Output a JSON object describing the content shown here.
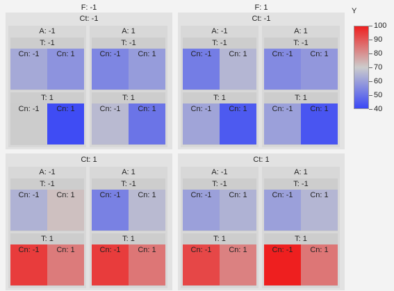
{
  "chart_data": {
    "type": "heatmap",
    "title": "",
    "color_scale": {
      "label": "Y",
      "min": 40,
      "max": 100,
      "ticks": [
        "100",
        "90",
        "80",
        "70",
        "60",
        "50",
        "40"
      ],
      "low_color": "#3a48f5",
      "mid_color": "#cccccc",
      "high_color": "#ee1f1f"
    },
    "facets": {
      "F": [
        "F: -1",
        "F: 1"
      ],
      "Ct": [
        "Ct: -1",
        "Ct: 1"
      ],
      "A": [
        "A: -1",
        "A: 1"
      ],
      "T": [
        "T: -1",
        "T: 1"
      ],
      "Cn": [
        "Cn: -1",
        "Cn: 1"
      ]
    },
    "cells": [
      {
        "F": -1,
        "Ct": -1,
        "A": -1,
        "T": -1,
        "Cn": -1,
        "Y": 62
      },
      {
        "F": -1,
        "Ct": -1,
        "A": -1,
        "T": -1,
        "Cn": 1,
        "Y": 57
      },
      {
        "F": -1,
        "Ct": -1,
        "A": -1,
        "T": 1,
        "Cn": -1,
        "Y": 70
      },
      {
        "F": -1,
        "Ct": -1,
        "A": -1,
        "T": 1,
        "Cn": 1,
        "Y": 41
      },
      {
        "F": -1,
        "Ct": -1,
        "A": 1,
        "T": -1,
        "Cn": -1,
        "Y": 54
      },
      {
        "F": -1,
        "Ct": -1,
        "A": 1,
        "T": -1,
        "Cn": 1,
        "Y": 59
      },
      {
        "F": -1,
        "Ct": -1,
        "A": 1,
        "T": 1,
        "Cn": -1,
        "Y": 66
      },
      {
        "F": -1,
        "Ct": -1,
        "A": 1,
        "T": 1,
        "Cn": 1,
        "Y": 50
      },
      {
        "F": 1,
        "Ct": -1,
        "A": -1,
        "T": -1,
        "Cn": -1,
        "Y": 52
      },
      {
        "F": 1,
        "Ct": -1,
        "A": -1,
        "T": -1,
        "Cn": 1,
        "Y": 65
      },
      {
        "F": 1,
        "Ct": -1,
        "A": -1,
        "T": 1,
        "Cn": -1,
        "Y": 61
      },
      {
        "F": 1,
        "Ct": -1,
        "A": -1,
        "T": 1,
        "Cn": 1,
        "Y": 44
      },
      {
        "F": 1,
        "Ct": -1,
        "A": 1,
        "T": -1,
        "Cn": -1,
        "Y": 55
      },
      {
        "F": 1,
        "Ct": -1,
        "A": 1,
        "T": -1,
        "Cn": 1,
        "Y": 58
      },
      {
        "F": 1,
        "Ct": -1,
        "A": 1,
        "T": 1,
        "Cn": -1,
        "Y": 60
      },
      {
        "F": 1,
        "Ct": -1,
        "A": 1,
        "T": 1,
        "Cn": 1,
        "Y": 43
      },
      {
        "F": -1,
        "Ct": 1,
        "A": -1,
        "T": -1,
        "Cn": -1,
        "Y": 64
      },
      {
        "F": -1,
        "Ct": 1,
        "A": -1,
        "T": -1,
        "Cn": 1,
        "Y": 72
      },
      {
        "F": -1,
        "Ct": 1,
        "A": -1,
        "T": 1,
        "Cn": -1,
        "Y": 95
      },
      {
        "F": -1,
        "Ct": 1,
        "A": -1,
        "T": 1,
        "Cn": 1,
        "Y": 84
      },
      {
        "F": -1,
        "Ct": 1,
        "A": 1,
        "T": -1,
        "Cn": -1,
        "Y": 53
      },
      {
        "F": -1,
        "Ct": 1,
        "A": 1,
        "T": -1,
        "Cn": 1,
        "Y": 66
      },
      {
        "F": -1,
        "Ct": 1,
        "A": 1,
        "T": 1,
        "Cn": -1,
        "Y": 95
      },
      {
        "F": -1,
        "Ct": 1,
        "A": 1,
        "T": 1,
        "Cn": 1,
        "Y": 85
      },
      {
        "F": 1,
        "Ct": 1,
        "A": -1,
        "T": -1,
        "Cn": -1,
        "Y": 60
      },
      {
        "F": 1,
        "Ct": 1,
        "A": -1,
        "T": -1,
        "Cn": 1,
        "Y": 64
      },
      {
        "F": 1,
        "Ct": 1,
        "A": -1,
        "T": 1,
        "Cn": -1,
        "Y": 93
      },
      {
        "F": 1,
        "Ct": 1,
        "A": -1,
        "T": 1,
        "Cn": 1,
        "Y": 83
      },
      {
        "F": 1,
        "Ct": 1,
        "A": 1,
        "T": -1,
        "Cn": -1,
        "Y": 60
      },
      {
        "F": 1,
        "Ct": 1,
        "A": 1,
        "T": -1,
        "Cn": 1,
        "Y": 65
      },
      {
        "F": 1,
        "Ct": 1,
        "A": 1,
        "T": 1,
        "Cn": -1,
        "Y": 100
      },
      {
        "F": 1,
        "Ct": 1,
        "A": 1,
        "T": 1,
        "Cn": 1,
        "Y": 85
      }
    ]
  }
}
